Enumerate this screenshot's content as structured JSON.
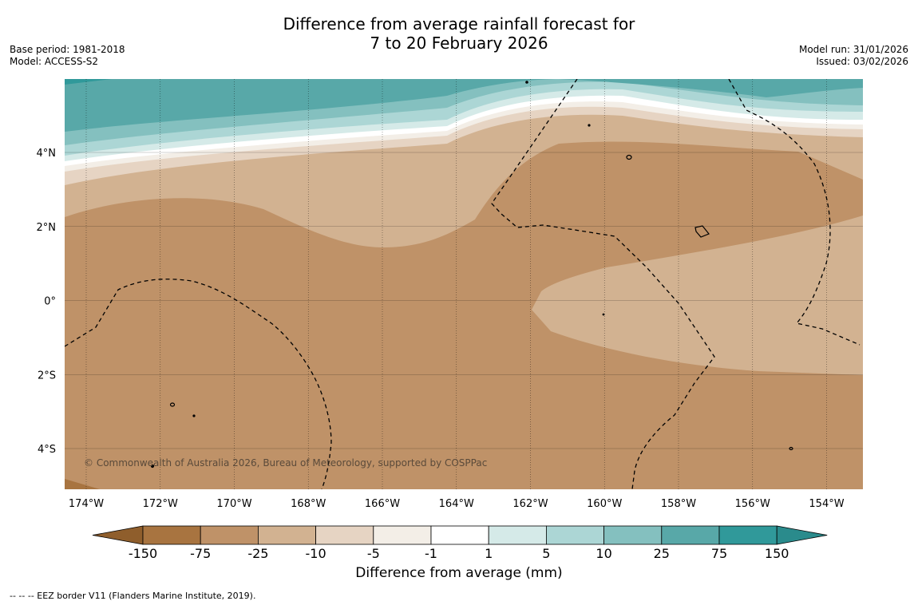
{
  "title": {
    "line1": "Difference from average rainfall forecast for",
    "line2": "7 to 20 February 2026"
  },
  "meta": {
    "base_period": "Base period: 1981-2018",
    "model": "Model: ACCESS-S2",
    "model_run": "Model run: 31/01/2026",
    "issued": "Issued: 03/02/2026"
  },
  "map": {
    "lon_labels": [
      "174°W",
      "172°W",
      "170°W",
      "168°W",
      "166°W",
      "164°W",
      "162°W",
      "160°W",
      "158°W",
      "156°W",
      "154°W"
    ],
    "lat_labels": [
      "4°N",
      "2°N",
      "0°",
      "2°S",
      "4°S"
    ],
    "copyright": "© Commonwealth of Australia 2026, Bureau of Meteorology, supported by COSPPac"
  },
  "colorbar": {
    "ticks": [
      "-150",
      "-75",
      "-25",
      "-10",
      "-5",
      "-1",
      "1",
      "5",
      "10",
      "25",
      "75",
      "150"
    ],
    "colors": [
      "#a87440",
      "#bf9268",
      "#d2b291",
      "#e6d4c3",
      "#f3eee7",
      "#ffffff",
      "#d5eae8",
      "#acd6d5",
      "#84c0bf",
      "#58a8a8",
      "#30999a"
    ],
    "extend_low": "#8f5e2c",
    "extend_high": "#2a8b8c",
    "label": "Difference from average (mm)"
  },
  "footnote": "--  --  -- EEZ border V11 (Flanders Marine Institute, 2019)."
}
